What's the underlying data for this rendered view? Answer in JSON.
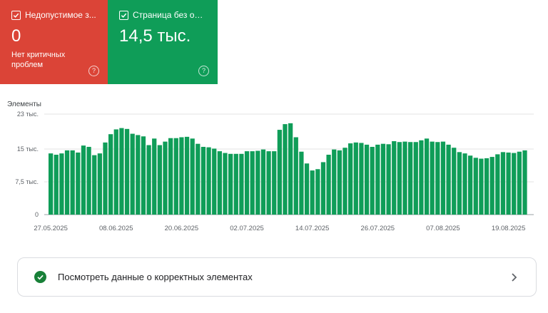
{
  "cards": [
    {
      "label": "Недопустимое з...",
      "value": "0",
      "sub": "Нет критичных проблем",
      "help": "?",
      "color": "#db4437",
      "icon": "checkbox-icon"
    },
    {
      "label": "Страница без ош...",
      "value": "14,5 тыс.",
      "sub": "",
      "help": "?",
      "color": "#0f9d58",
      "icon": "checkbox-icon"
    }
  ],
  "chart_title": "Элементы",
  "chart_data": {
    "type": "bar",
    "ylabel": "Элементы",
    "y_ticks": [
      {
        "v": 0,
        "label": "0"
      },
      {
        "v": 7500,
        "label": "7,5 тыс."
      },
      {
        "v": 15000,
        "label": "15 тыс."
      },
      {
        "v": 23000,
        "label": "23 тыс."
      }
    ],
    "ylim": [
      0,
      23000
    ],
    "x_tick_labels": [
      {
        "index": 0,
        "label": "27.05.2025"
      },
      {
        "index": 12,
        "label": "08.06.2025"
      },
      {
        "index": 24,
        "label": "20.06.2025"
      },
      {
        "index": 36,
        "label": "02.07.2025"
      },
      {
        "index": 48,
        "label": "14.07.2025"
      },
      {
        "index": 60,
        "label": "26.07.2025"
      },
      {
        "index": 72,
        "label": "07.08.2025"
      },
      {
        "index": 84,
        "label": "19.08.2025"
      }
    ],
    "values": [
      14000,
      13700,
      14000,
      14700,
      14700,
      14200,
      15800,
      15500,
      13600,
      14000,
      16500,
      18400,
      19500,
      19800,
      19600,
      18500,
      18200,
      17900,
      15900,
      17400,
      15900,
      16700,
      17500,
      17500,
      17700,
      17800,
      17400,
      16200,
      15500,
      15400,
      15100,
      14500,
      14100,
      13900,
      13900,
      13900,
      14500,
      14500,
      14600,
      14900,
      14500,
      14500,
      19400,
      20700,
      20900,
      17700,
      14400,
      11700,
      10100,
      10400,
      12000,
      13700,
      14900,
      14700,
      15300,
      16300,
      16500,
      16400,
      16000,
      15500,
      16000,
      16200,
      16100,
      16800,
      16600,
      16700,
      16600,
      16600,
      17000,
      17400,
      16700,
      16600,
      16700,
      16000,
      15300,
      14300,
      14000,
      13500,
      13000,
      12800,
      12900,
      13200,
      13800,
      14300,
      14200,
      14100,
      14400,
      14700
    ],
    "bar_color": "#0f9d58"
  },
  "link_row": {
    "label": "Посмотреть данные о корректных элементах",
    "icon": "check-circle-icon",
    "chevron": "chevron-right-icon"
  }
}
